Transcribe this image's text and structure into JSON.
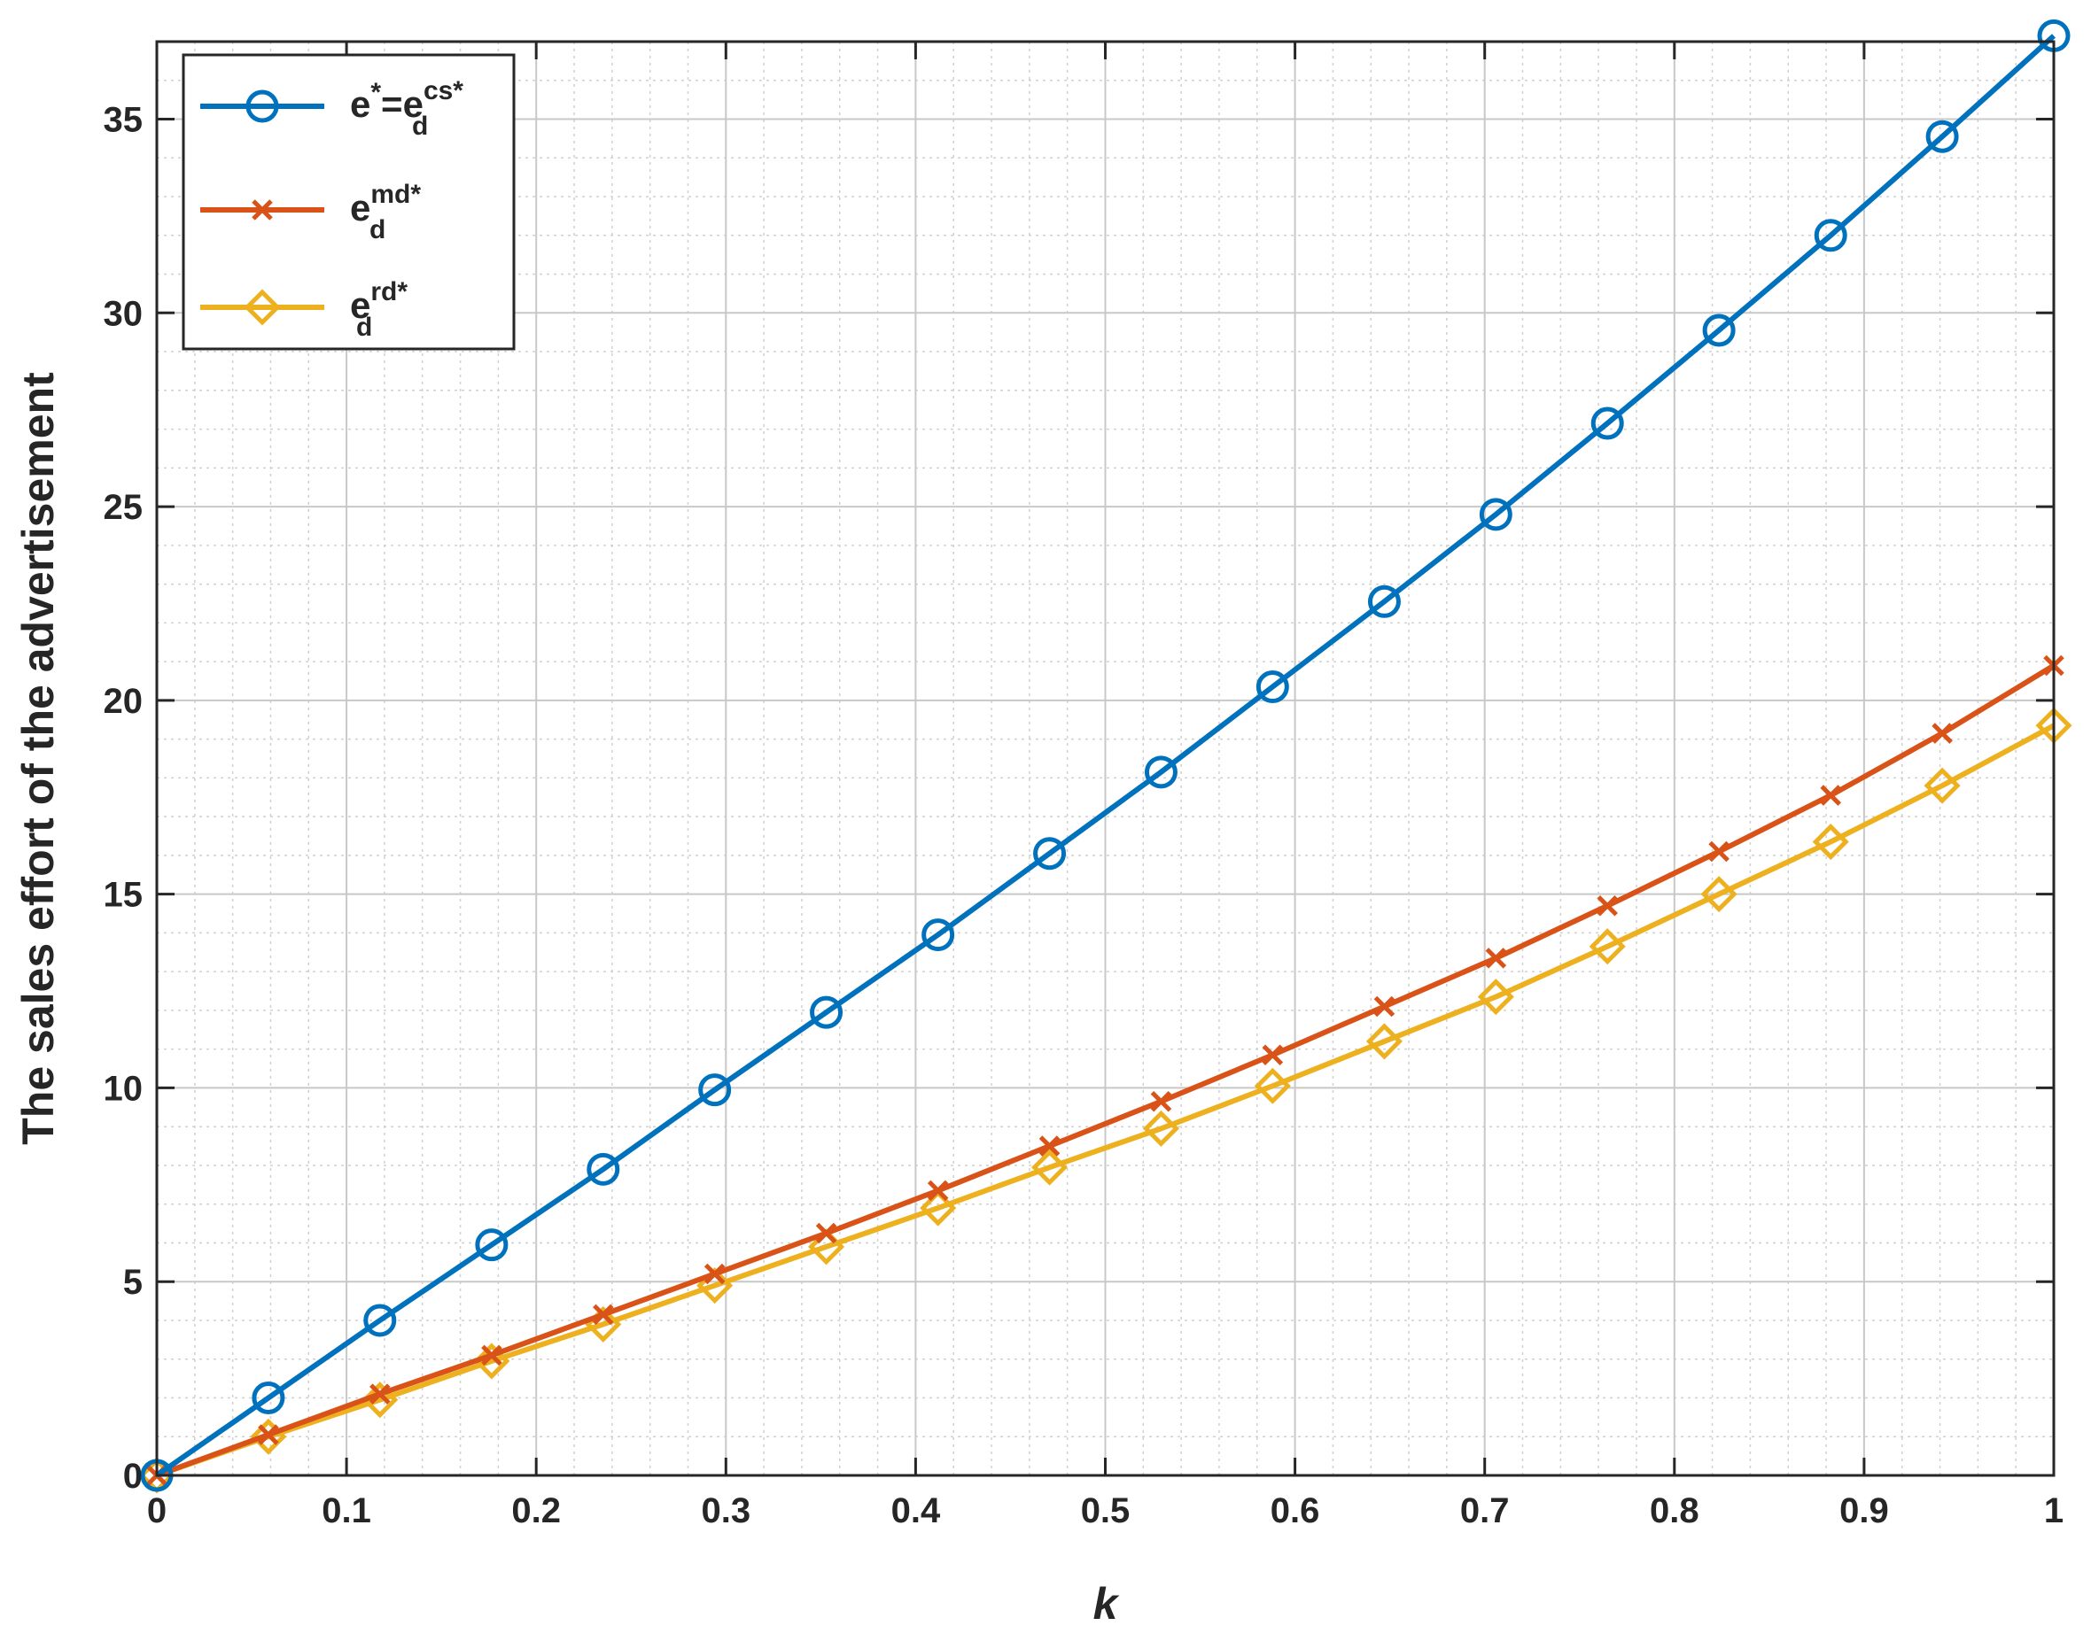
{
  "chart_data": {
    "type": "line",
    "xlabel": "k",
    "ylabel": "The sales effort of the advertisement",
    "xlim": [
      0,
      1
    ],
    "ylim": [
      0,
      37
    ],
    "xticks": [
      "0",
      "0.1",
      "0.2",
      "0.3",
      "0.4",
      "0.5",
      "0.6",
      "0.7",
      "0.8",
      "0.9",
      "1"
    ],
    "yticks": [
      "0",
      "5",
      "10",
      "15",
      "20",
      "25",
      "30",
      "35"
    ],
    "grid": true,
    "minor_grid": true,
    "legend_position": "top-left",
    "x": [
      0,
      0.0588,
      0.1176,
      0.1765,
      0.2353,
      0.2941,
      0.3529,
      0.4118,
      0.4706,
      0.5294,
      0.5882,
      0.6471,
      0.7059,
      0.7647,
      0.8235,
      0.8824,
      0.9412,
      1.0
    ],
    "series": [
      {
        "legend": {
          "base": "e",
          "sup1": "*",
          "eq": "=e",
          "sub": "d",
          "sup2": "cs*"
        },
        "color": "#0072BD",
        "marker": "circle",
        "values": [
          0,
          2.0,
          4.0,
          5.95,
          7.9,
          9.95,
          11.95,
          13.95,
          16.05,
          18.15,
          20.35,
          22.55,
          24.8,
          27.15,
          29.55,
          32.0,
          34.55,
          37.15
        ]
      },
      {
        "legend": {
          "base": "e",
          "sub": "d",
          "sup": "md*"
        },
        "color": "#D95319",
        "marker": "x",
        "values": [
          0,
          1.05,
          2.1,
          3.1,
          4.15,
          5.2,
          6.25,
          7.35,
          8.5,
          9.65,
          10.85,
          12.1,
          13.35,
          14.7,
          16.1,
          17.55,
          19.15,
          20.9
        ]
      },
      {
        "legend": {
          "base": "e",
          "sub": "d",
          "sup": "rd*"
        },
        "color": "#EDB120",
        "marker": "diamond",
        "values": [
          0,
          1.0,
          1.95,
          2.95,
          3.9,
          4.9,
          5.9,
          6.9,
          7.95,
          8.95,
          10.05,
          11.2,
          12.35,
          13.65,
          15.0,
          16.35,
          17.8,
          19.35
        ]
      }
    ]
  }
}
